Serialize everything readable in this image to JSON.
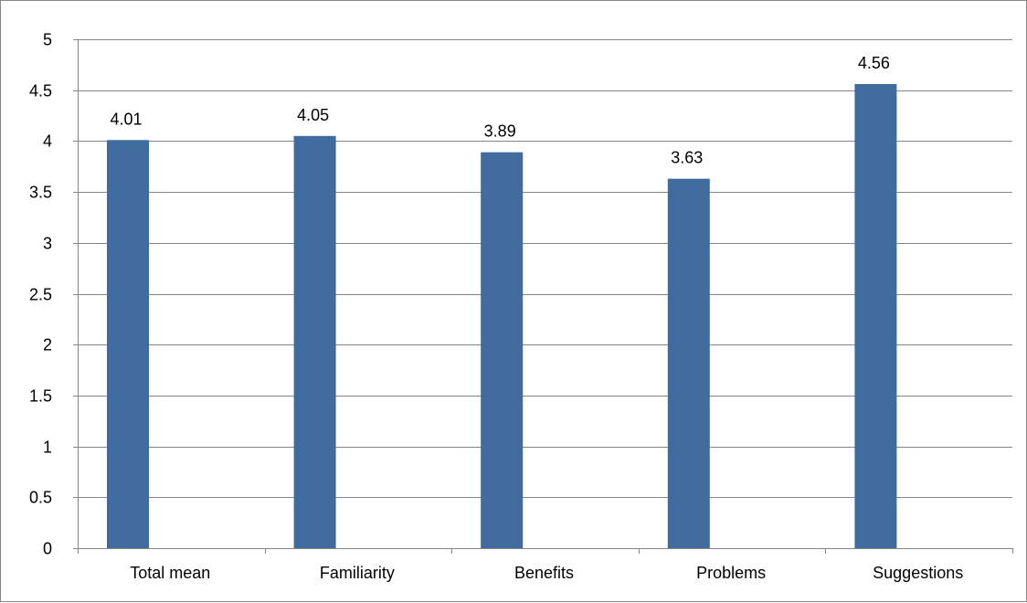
{
  "chart_data": {
    "type": "bar",
    "categories": [
      "Total mean",
      "Familiarity",
      "Benefits",
      "Problems",
      "Suggestions"
    ],
    "values": [
      4.01,
      4.05,
      3.89,
      3.63,
      4.56
    ],
    "data_labels": [
      "4.01",
      "4.05",
      "3.89",
      "3.63",
      "4.56"
    ],
    "title": "",
    "xlabel": "",
    "ylabel": "",
    "ylim": [
      0,
      5
    ],
    "yticks": [
      0,
      0.5,
      1,
      1.5,
      2,
      2.5,
      3,
      3.5,
      4,
      4.5,
      5
    ],
    "ytick_labels": [
      "0",
      "0.5",
      "1",
      "1.5",
      "2",
      "2.5",
      "3",
      "3.5",
      "4",
      "4.5",
      "5"
    ],
    "grid": true,
    "legend": "none",
    "bar_color": "#3F6B9E",
    "grid_color": "#868686"
  }
}
